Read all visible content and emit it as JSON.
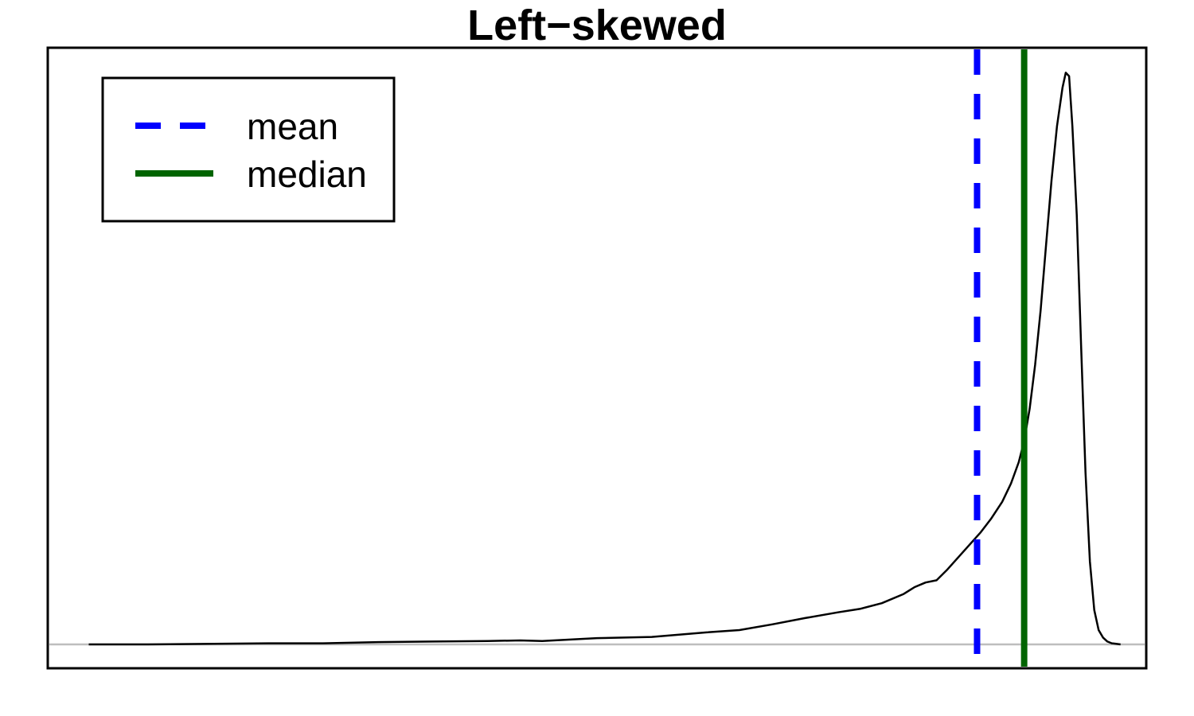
{
  "chart_data": {
    "type": "line",
    "title": "Left−skewed",
    "xlabel": "",
    "ylabel": "",
    "xlim": [
      0,
      1
    ],
    "ylim": [
      0,
      1
    ],
    "grid": false,
    "axes_ticks": false,
    "legend": {
      "placement": "top-left",
      "entries": [
        {
          "name": "mean",
          "style": "dashed",
          "color": "#0000ff"
        },
        {
          "name": "median",
          "style": "solid",
          "color": "#006400"
        }
      ]
    },
    "baseline": {
      "y": 0,
      "color": "#bebebe"
    },
    "series": [
      {
        "x": [
          0.036,
          0.09,
          0.15,
          0.2,
          0.25,
          0.3,
          0.35,
          0.4,
          0.43,
          0.45,
          0.5,
          0.55,
          0.6,
          0.63,
          0.66,
          0.69,
          0.72,
          0.74,
          0.76,
          0.78,
          0.79,
          0.8,
          0.81,
          0.82,
          0.835,
          0.85,
          0.86,
          0.87,
          0.878,
          0.885,
          0.89,
          0.895,
          0.9,
          0.905,
          0.91,
          0.915,
          0.92,
          0.925,
          0.928,
          0.931,
          0.934,
          0.938,
          0.942,
          0.946,
          0.95,
          0.954,
          0.958,
          0.962,
          0.966,
          0.97,
          0.974,
          0.978
        ],
        "y": [
          0.0,
          0.0,
          0.001,
          0.002,
          0.002,
          0.004,
          0.005,
          0.006,
          0.007,
          0.006,
          0.011,
          0.013,
          0.021,
          0.025,
          0.035,
          0.046,
          0.056,
          0.062,
          0.072,
          0.088,
          0.1,
          0.108,
          0.112,
          0.131,
          0.163,
          0.195,
          0.22,
          0.249,
          0.281,
          0.318,
          0.355,
          0.411,
          0.488,
          0.583,
          0.698,
          0.81,
          0.905,
          0.972,
          0.998,
          0.992,
          0.905,
          0.75,
          0.52,
          0.3,
          0.145,
          0.06,
          0.025,
          0.012,
          0.005,
          0.002,
          0.001,
          0.0
        ]
      }
    ],
    "mean": 0.847,
    "median": 0.89
  }
}
